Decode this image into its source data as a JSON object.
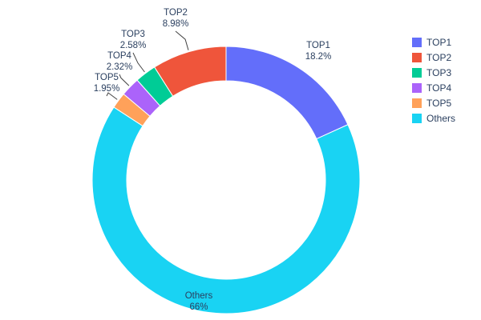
{
  "chart_data": {
    "type": "pie",
    "subtype": "donut",
    "labels": [
      "TOP1",
      "TOP2",
      "TOP3",
      "TOP4",
      "TOP5",
      "Others"
    ],
    "values": [
      18.2,
      8.98,
      2.58,
      2.32,
      1.95,
      66
    ],
    "percent_labels": [
      "18.2%",
      "8.98%",
      "2.58%",
      "2.32%",
      "1.95%",
      "66%"
    ],
    "colors": [
      "#636efa",
      "#ef553b",
      "#00cc96",
      "#ab63fa",
      "#ffa15a",
      "#19d3f3"
    ],
    "hole": 0.74,
    "slice_order_clockwise": [
      0,
      5,
      4,
      3,
      2,
      1
    ],
    "start_angle_deg": 0,
    "label_text_color": "#2a3f5f",
    "background": "#ffffff",
    "legend": {
      "position": "right",
      "items": [
        "TOP1",
        "TOP2",
        "TOP3",
        "TOP4",
        "TOP5",
        "Others"
      ]
    }
  }
}
